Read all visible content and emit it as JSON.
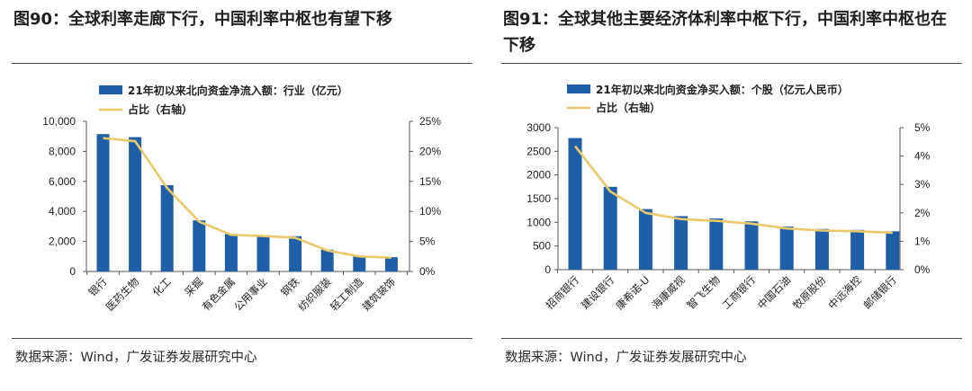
{
  "colors": {
    "bar": "#1f5fa8",
    "line": "#e9c96a",
    "rule": "#4d4d4d"
  },
  "source_label": "数据来源：Wind，广发证券发展研究中心",
  "charts": [
    {
      "title": "图90：全球利率走廊下行，中国利率中枢也有望下移",
      "source": "数据来源：Wind，广发证券发展研究中心"
    },
    {
      "title": "图91：全球其他主要经济体利率中枢下行，中国利率中枢也在下移",
      "source": "数据来源：Wind，广发证券发展研究中心"
    }
  ],
  "chart_data": [
    {
      "type": "bar",
      "title": "图90：全球利率走廊下行，中国利率中枢也有望下移",
      "categories": [
        "银行",
        "医药生物",
        "化工",
        "采掘",
        "有色金属",
        "公用事业",
        "钢铁",
        "纺织服装",
        "轻工制造",
        "建筑装饰"
      ],
      "series": [
        {
          "name": "21年初以来北向资金净流入额：行业（亿元）",
          "type": "bar",
          "axis": "left",
          "values": [
            9150,
            8950,
            5750,
            3400,
            2500,
            2400,
            2350,
            1450,
            1000,
            950
          ]
        },
        {
          "name": "占比（右轴）",
          "type": "line",
          "axis": "right",
          "values": [
            22.2,
            21.7,
            13.9,
            8.3,
            6.1,
            5.9,
            5.6,
            3.5,
            2.5,
            2.3
          ]
        }
      ],
      "y_left": {
        "min": 0,
        "max": 10000,
        "step": 2000,
        "ticks": [
          "0",
          "2,000",
          "4,000",
          "6,000",
          "8,000",
          "10,000"
        ]
      },
      "y_right": {
        "min": 0,
        "max": 25,
        "step": 5,
        "ticks": [
          "0%",
          "5%",
          "10%",
          "15%",
          "20%",
          "25%"
        ]
      },
      "grid": false,
      "legend": "top-left"
    },
    {
      "type": "bar",
      "title": "图91：全球其他主要经济体利率中枢下行，中国利率中枢也在下移",
      "categories": [
        "招商银行",
        "建设银行",
        "康希诺-U",
        "海康威视",
        "智飞生物",
        "工商银行",
        "中国石油",
        "牧原股份",
        "中远海控",
        "邮储银行"
      ],
      "series": [
        {
          "name": "21年初以来北向资金净买入额：个股（亿元人民币）",
          "type": "bar",
          "axis": "left",
          "values": [
            2780,
            1750,
            1280,
            1130,
            1080,
            1020,
            910,
            860,
            840,
            810
          ]
        },
        {
          "name": "占比（右轴）",
          "type": "line",
          "axis": "right",
          "values": [
            4.35,
            2.75,
            2.0,
            1.78,
            1.72,
            1.62,
            1.45,
            1.38,
            1.35,
            1.3
          ]
        }
      ],
      "y_left": {
        "min": 0,
        "max": 3000,
        "step": 500,
        "ticks": [
          "0",
          "500",
          "1000",
          "1500",
          "2000",
          "2500",
          "3000"
        ]
      },
      "y_right": {
        "min": 0,
        "max": 5,
        "step": 1,
        "ticks": [
          "0%",
          "1%",
          "2%",
          "3%",
          "4%",
          "5%"
        ]
      },
      "grid": false,
      "legend": "top-left"
    }
  ]
}
